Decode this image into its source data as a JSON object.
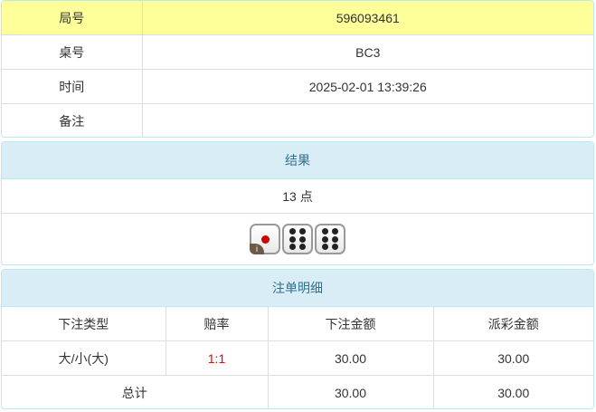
{
  "info": {
    "round_label": "局号",
    "round": "596093461",
    "table_label": "桌号",
    "table": "BC3",
    "time_label": "时间",
    "time": "2025-02-01 13:39:26",
    "note_label": "备注",
    "note": ""
  },
  "result": {
    "title": "结果",
    "points": "13 点",
    "dice": [
      1,
      6,
      6
    ]
  },
  "bets": {
    "title": "注单明细",
    "headers": [
      "下注类型",
      "赔率",
      "下注金额",
      "派彩金额"
    ],
    "rows": [
      {
        "type": "大/小(大)",
        "odds": "1:1",
        "amount": "30.00",
        "payout": "30.00"
      }
    ],
    "total": {
      "label": "总计",
      "amount": "30.00",
      "payout": "30.00"
    }
  },
  "colors": {
    "highlight": "#ffff99",
    "panel_header": "#d9edf7",
    "odds": "#e00000"
  }
}
